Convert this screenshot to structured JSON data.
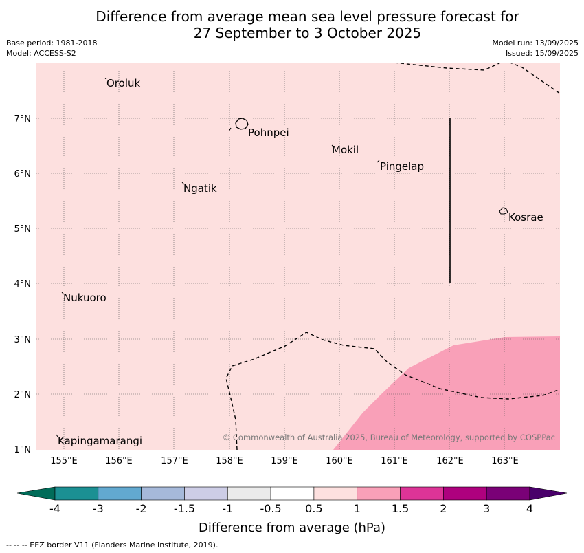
{
  "title": {
    "line1": "Difference from average mean sea level pressure forecast for",
    "line2": "27 September to 3 October 2025"
  },
  "meta": {
    "base_period": "Base period: 1981-2018",
    "model": "Model: ACCESS-S2",
    "model_run": "Model run: 13/09/2025",
    "issued": "Issued: 15/09/2025"
  },
  "map": {
    "background_color": "#fde0df",
    "lon_ticks": [
      "155°E",
      "156°E",
      "157°E",
      "158°E",
      "159°E",
      "160°E",
      "161°E",
      "162°E",
      "163°E"
    ],
    "lat_ticks": [
      "7°N",
      "6°N",
      "5°N",
      "4°N",
      "3°N",
      "2°N",
      "1°N"
    ],
    "places": [
      {
        "name": "Oroluk"
      },
      {
        "name": "Pohnpei"
      },
      {
        "name": "Mokil"
      },
      {
        "name": "Pingelap"
      },
      {
        "name": "Ngatik"
      },
      {
        "name": "Kosrae"
      },
      {
        "name": "Nukuoro"
      },
      {
        "name": "Kapingamarangi"
      }
    ],
    "shaded_region_color": "#f9a0b8",
    "copyright": "© Commonwealth of Australia 2025, Bureau of Meteorology, supported by COSPPac"
  },
  "colorbar": {
    "label": "Difference from average (hPa)",
    "ticks": [
      "-4",
      "-3",
      "-2",
      "-1.5",
      "-1",
      "-0.5",
      "0.5",
      "1",
      "1.5",
      "2",
      "3",
      "4"
    ],
    "colors": [
      "#1b9093",
      "#62a9d0",
      "#a6b9da",
      "#cdcde6",
      "#ebebeb",
      "#ffffff",
      "#fde0df",
      "#f9a0b8",
      "#dd3497",
      "#ae017e",
      "#7a0177"
    ],
    "under_color": "#016c59",
    "over_color": "#49006a"
  },
  "footnote": "--  --  -- EEZ border V11 (Flanders Marine Institute, 2019)."
}
